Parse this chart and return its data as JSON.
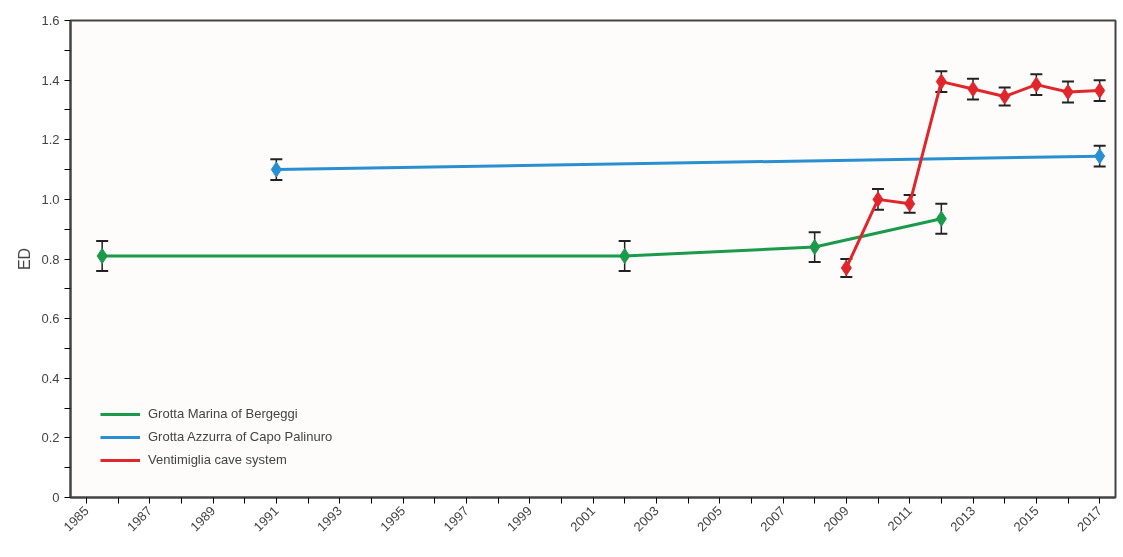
{
  "chart_data": {
    "type": "line",
    "ylabel": "ED",
    "marker": "diamond",
    "legend": "bottom left",
    "grid": false,
    "xlim": [
      1984.5,
      2017.5
    ],
    "ylim": [
      0,
      1.6
    ],
    "xticks": [
      1985,
      {
        "value": 1986,
        "label": null
      },
      1987,
      {
        "value": 1988,
        "label": null
      },
      1989,
      {
        "value": 1990,
        "label": null
      },
      1991,
      {
        "value": 1992,
        "label": null
      },
      1993,
      {
        "value": 1994,
        "label": null
      },
      1995,
      {
        "value": 1996,
        "label": null
      },
      1997,
      {
        "value": 1998,
        "label": null
      },
      1999,
      {
        "value": 2000,
        "label": null
      },
      2001,
      {
        "value": 2002,
        "label": null
      },
      2003,
      {
        "value": 2004,
        "label": null
      },
      2005,
      {
        "value": 2006,
        "label": null
      },
      2007,
      {
        "value": 2008,
        "label": null
      },
      2009,
      {
        "value": 2010,
        "label": null
      },
      2011,
      {
        "value": 2012,
        "label": null
      },
      2013,
      {
        "value": 2014,
        "label": null
      },
      2015,
      {
        "value": 2016,
        "label": null
      },
      2017
    ],
    "yticks": [
      {
        "value": 0,
        "label": "0"
      },
      {
        "value": 0.1,
        "label": null
      },
      {
        "value": 0.2,
        "label": "0.2"
      },
      {
        "value": 0.3,
        "label": null
      },
      {
        "value": 0.4,
        "label": "0.4"
      },
      {
        "value": 0.5,
        "label": null
      },
      {
        "value": 0.6,
        "label": "0.6"
      },
      {
        "value": 0.7,
        "label": null
      },
      {
        "value": 0.8,
        "label": "0.8"
      },
      {
        "value": 0.9,
        "label": null
      },
      {
        "value": 1.0,
        "label": "1.0"
      },
      {
        "value": 1.1,
        "label": null
      },
      {
        "value": 1.2,
        "label": "1.2"
      },
      {
        "value": 1.3,
        "label": null
      },
      {
        "value": 1.4,
        "label": "1.4"
      },
      {
        "value": 1.5,
        "label": null
      },
      {
        "value": 1.6,
        "label": "1.6"
      }
    ],
    "series": [
      {
        "name": "Grotta Marina of Bergeggi",
        "color": "#1a9a4a",
        "x": [
          1985.5,
          2002,
          2008,
          2012
        ],
        "values": [
          0.81,
          0.81,
          0.84,
          0.935
        ],
        "errors": [
          0.05,
          0.05,
          0.05,
          0.05
        ]
      },
      {
        "name": "Grotta Azzurra of Capo Palinuro",
        "color": "#2a8fd0",
        "x": [
          1991,
          2017
        ],
        "values": [
          1.1,
          1.145
        ],
        "errors": [
          0.035,
          0.035
        ]
      },
      {
        "name": "Ventimiglia cave system",
        "color": "#e0262b",
        "x": [
          2009,
          2010,
          2011,
          2012,
          2013,
          2014,
          2015,
          2016,
          2017
        ],
        "values": [
          0.77,
          1.0,
          0.985,
          1.395,
          1.37,
          1.345,
          1.385,
          1.36,
          1.365
        ],
        "errors": [
          0.03,
          0.035,
          0.03,
          0.035,
          0.035,
          0.03,
          0.035,
          0.035,
          0.035
        ]
      }
    ]
  }
}
